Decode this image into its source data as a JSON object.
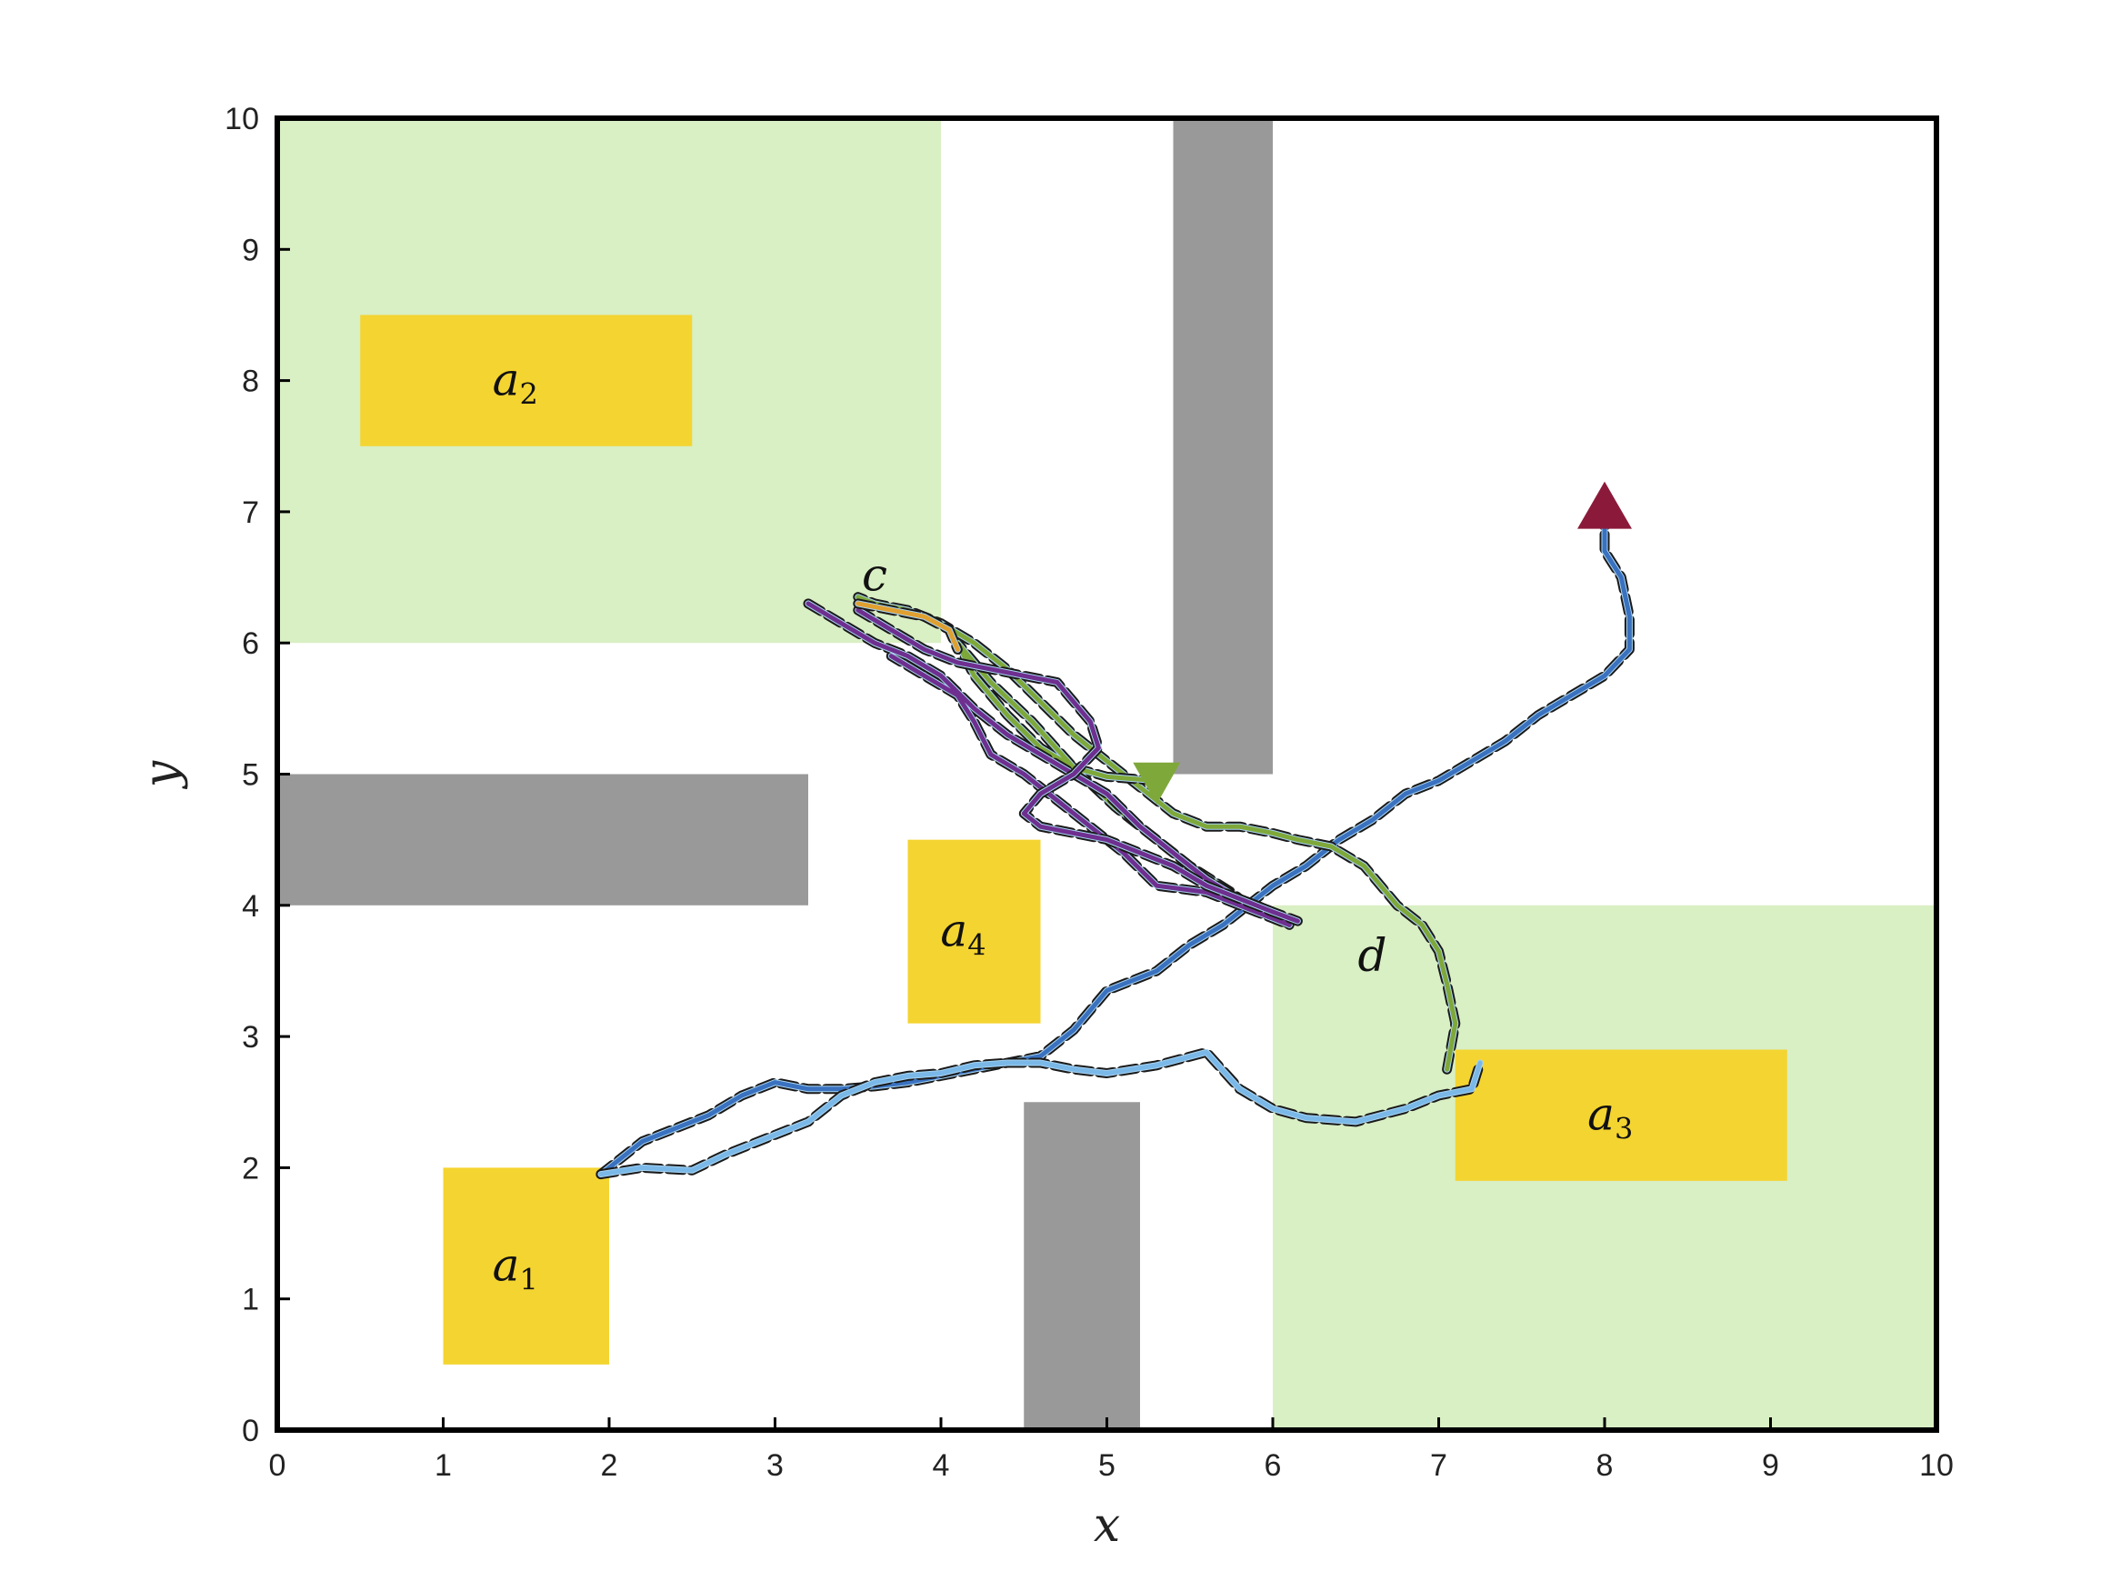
{
  "chart_data": {
    "type": "line",
    "title": "",
    "xlabel": "x",
    "ylabel": "y",
    "xlim": [
      0,
      10
    ],
    "ylim": [
      0,
      10
    ],
    "xticks": [
      "0",
      "1",
      "2",
      "3",
      "4",
      "5",
      "6",
      "7",
      "8",
      "9",
      "10"
    ],
    "yticks": [
      "0",
      "1",
      "2",
      "3",
      "4",
      "5",
      "6",
      "7",
      "8",
      "9",
      "10"
    ],
    "grid": false,
    "colors": {
      "green_region": "#d9efc4",
      "obstacle": "#999999",
      "goal": "#f4d430",
      "start_marker": "#8b1a3a",
      "end_marker": "#7fa83a"
    },
    "green_regions": [
      {
        "x0": 0,
        "y0": 6,
        "x1": 4,
        "y1": 10
      },
      {
        "x0": 6,
        "y0": 0,
        "x1": 10,
        "y1": 4
      }
    ],
    "obstacles": [
      {
        "x0": 5.4,
        "y0": 5,
        "x1": 6,
        "y1": 10
      },
      {
        "x0": 0,
        "y0": 4,
        "x1": 3.2,
        "y1": 5
      },
      {
        "x0": 4.5,
        "y0": 0,
        "x1": 5.2,
        "y1": 2.5
      }
    ],
    "goal_regions": [
      {
        "label": "a",
        "sub": "1",
        "x0": 1,
        "y0": 0.5,
        "x1": 2,
        "y1": 2
      },
      {
        "label": "a",
        "sub": "2",
        "x0": 0.5,
        "y0": 7.5,
        "x1": 2.5,
        "y1": 8.5
      },
      {
        "label": "a",
        "sub": "3",
        "x0": 7.1,
        "y0": 1.9,
        "x1": 9.1,
        "y1": 2.9
      },
      {
        "label": "a",
        "sub": "4",
        "x0": 3.8,
        "y0": 3.1,
        "x1": 4.6,
        "y1": 4.5
      }
    ],
    "annotations": [
      {
        "text": "c",
        "x": 3.6,
        "y": 6.4
      },
      {
        "text": "d",
        "x": 6.6,
        "y": 3.5
      }
    ],
    "start_marker": {
      "x": 8.0,
      "y": 7.05
    },
    "end_marker": {
      "x": 5.3,
      "y": 4.95
    },
    "series": [
      {
        "color": "#3a72c0",
        "x": [
          8.0,
          8.0,
          8.1,
          8.15,
          8.15,
          8.0,
          7.8,
          7.6,
          7.4,
          7.2,
          7.0,
          6.8,
          6.6,
          6.4,
          6.2,
          6.0,
          5.85,
          5.7,
          5.5,
          5.3,
          5.0,
          4.8,
          4.6,
          4.4,
          4.2,
          4.0,
          3.8,
          3.6,
          3.4,
          3.2,
          3.0,
          2.8,
          2.6,
          2.4,
          2.2,
          2.05,
          1.95
        ],
        "y": [
          7.0,
          6.7,
          6.5,
          6.2,
          5.95,
          5.75,
          5.6,
          5.45,
          5.25,
          5.1,
          4.95,
          4.85,
          4.65,
          4.5,
          4.3,
          4.15,
          4.0,
          3.85,
          3.7,
          3.5,
          3.35,
          3.05,
          2.85,
          2.8,
          2.75,
          2.7,
          2.65,
          2.62,
          2.6,
          2.6,
          2.65,
          2.55,
          2.4,
          2.3,
          2.2,
          2.05,
          1.95
        ]
      },
      {
        "color": "#7ab8e8",
        "x": [
          1.95,
          2.2,
          2.5,
          2.7,
          3.0,
          3.2,
          3.4,
          3.6,
          3.8,
          4.0,
          4.2,
          4.4,
          4.6,
          4.8,
          5.0,
          5.3,
          5.6,
          5.8,
          6.0,
          6.2,
          6.5,
          6.8,
          7.0,
          7.2,
          7.25
        ],
        "y": [
          1.95,
          2.0,
          1.98,
          2.1,
          2.25,
          2.35,
          2.55,
          2.65,
          2.7,
          2.72,
          2.78,
          2.8,
          2.8,
          2.75,
          2.72,
          2.78,
          2.88,
          2.6,
          2.45,
          2.38,
          2.35,
          2.45,
          2.55,
          2.6,
          2.8
        ]
      },
      {
        "color": "#7fa83a",
        "x": [
          7.05,
          7.1,
          7.05,
          7.0,
          6.9,
          6.75,
          6.55,
          6.35,
          6.15,
          6.0,
          5.8,
          5.6,
          5.4,
          5.2,
          5.0,
          4.8,
          4.6,
          4.4,
          4.2,
          4.0,
          3.8,
          3.6,
          3.5
        ],
        "y": [
          2.75,
          3.1,
          3.4,
          3.65,
          3.85,
          4.0,
          4.3,
          4.45,
          4.5,
          4.55,
          4.6,
          4.6,
          4.7,
          4.9,
          5.1,
          5.3,
          5.55,
          5.8,
          6.0,
          6.15,
          6.25,
          6.3,
          6.35
        ]
      },
      {
        "color": "#7fa83a",
        "x": [
          5.3,
          5.0,
          4.8,
          4.6,
          4.4,
          4.2,
          4.1,
          4.3,
          4.55,
          4.8,
          5.05,
          5.3,
          5.5,
          5.75,
          5.9
        ],
        "y": [
          4.95,
          4.98,
          5.05,
          5.2,
          5.45,
          5.75,
          6.0,
          5.7,
          5.4,
          5.05,
          4.75,
          4.5,
          4.3,
          4.1,
          3.95
        ]
      },
      {
        "color": "#6f2f8f",
        "x": [
          3.2,
          3.4,
          3.6,
          3.8,
          4.0,
          4.2,
          4.4,
          4.6,
          4.8,
          5.0,
          5.2,
          5.4,
          5.6,
          5.8,
          6.0,
          6.1,
          5.9,
          5.6,
          5.3,
          5.1,
          4.9,
          4.7,
          4.5,
          4.3,
          4.2,
          4.1,
          3.9,
          3.7
        ],
        "y": [
          6.3,
          6.15,
          6.0,
          5.9,
          5.75,
          5.5,
          5.3,
          5.15,
          5.0,
          4.85,
          4.6,
          4.4,
          4.2,
          4.05,
          3.95,
          3.85,
          3.95,
          4.1,
          4.15,
          4.4,
          4.6,
          4.8,
          5.0,
          5.15,
          5.4,
          5.6,
          5.75,
          5.9
        ]
      },
      {
        "color": "#6f2f8f",
        "x": [
          3.5,
          3.7,
          3.9,
          4.1,
          4.3,
          4.5,
          4.7,
          4.8,
          4.9,
          4.95,
          4.8,
          4.6,
          4.5,
          4.6,
          4.8,
          5.0,
          5.2,
          5.4,
          5.6,
          5.8,
          6.0,
          6.15
        ],
        "y": [
          6.25,
          6.1,
          5.95,
          5.85,
          5.8,
          5.75,
          5.7,
          5.55,
          5.4,
          5.2,
          5.0,
          4.85,
          4.7,
          4.6,
          4.55,
          4.5,
          4.4,
          4.3,
          4.15,
          4.05,
          3.95,
          3.88
        ]
      },
      {
        "color": "#e0a030",
        "x": [
          3.5,
          3.7,
          3.9,
          4.05,
          4.1
        ],
        "y": [
          6.3,
          6.25,
          6.2,
          6.1,
          5.95
        ]
      }
    ]
  }
}
